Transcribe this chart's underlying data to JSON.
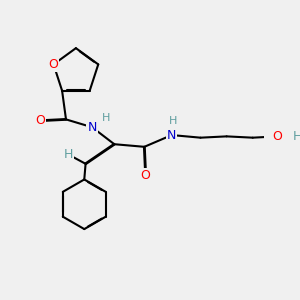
{
  "bg_color": "#f0f0f0",
  "atom_colors": {
    "C": "#000000",
    "N": "#0000cd",
    "O": "#ff0000",
    "H": "#5f9ea0"
  },
  "bond_color": "#000000",
  "bond_width": 1.5,
  "dbo": 0.015,
  "figsize": [
    3.0,
    3.0
  ],
  "dpi": 100
}
